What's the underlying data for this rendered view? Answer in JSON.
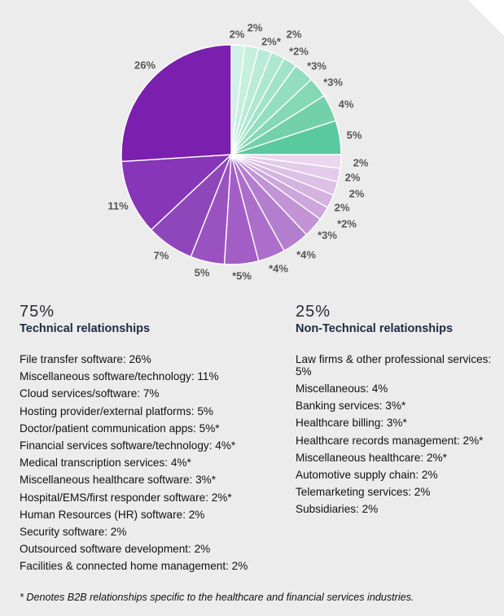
{
  "chart_data": {
    "type": "pie",
    "slice_labels": [
      "2%",
      "2%",
      "2%*",
      "2%",
      "*2%",
      "*3%",
      "*3%",
      "4%",
      "5%",
      "2%",
      "2%",
      "2%",
      "2%",
      "*2%",
      "*3%",
      "*4%",
      "*4%",
      "*5%",
      "5%",
      "7%",
      "11%",
      "26%"
    ],
    "slices": [
      {
        "value": 2,
        "label": "2%",
        "group": "non-technical",
        "color": "#d0f2e6"
      },
      {
        "value": 2,
        "label": "2%",
        "group": "non-technical",
        "color": "#c5efdf"
      },
      {
        "value": 2,
        "label": "2%*",
        "group": "non-technical",
        "color": "#b9ebd8"
      },
      {
        "value": 2,
        "label": "2%",
        "group": "non-technical",
        "color": "#ade7d0"
      },
      {
        "value": 2,
        "label": "*2%",
        "group": "non-technical",
        "color": "#a1e3c9"
      },
      {
        "value": 3,
        "label": "*3%",
        "group": "non-technical",
        "color": "#93dec0"
      },
      {
        "value": 3,
        "label": "*3%",
        "group": "non-technical",
        "color": "#84d8b6"
      },
      {
        "value": 4,
        "label": "4%",
        "group": "non-technical",
        "color": "#72d1ab"
      },
      {
        "value": 5,
        "label": "5%",
        "group": "non-technical",
        "color": "#5bc99f"
      },
      {
        "value": 2,
        "label": "2%",
        "group": "technical",
        "color": "#ead6ef"
      },
      {
        "value": 2,
        "label": "2%",
        "group": "technical",
        "color": "#e3cbea"
      },
      {
        "value": 2,
        "label": "2%",
        "group": "technical",
        "color": "#dcc0e6"
      },
      {
        "value": 2,
        "label": "2%",
        "group": "technical",
        "color": "#d4b3e1"
      },
      {
        "value": 2,
        "label": "*2%",
        "group": "technical",
        "color": "#cca6dc"
      },
      {
        "value": 3,
        "label": "*3%",
        "group": "technical",
        "color": "#c294d6"
      },
      {
        "value": 4,
        "label": "*4%",
        "group": "technical",
        "color": "#b47ecf"
      },
      {
        "value": 4,
        "label": "*4%",
        "group": "technical",
        "color": "#ad6ecb"
      },
      {
        "value": 5,
        "label": "*5%",
        "group": "technical",
        "color": "#a35ec5"
      },
      {
        "value": 5,
        "label": "5%",
        "group": "technical",
        "color": "#9a52c0"
      },
      {
        "value": 7,
        "label": "7%",
        "group": "technical",
        "color": "#9046bb"
      },
      {
        "value": 11,
        "label": "11%",
        "group": "technical",
        "color": "#8636b6"
      },
      {
        "value": 26,
        "label": "26%",
        "group": "technical",
        "color": "#7b1fae"
      }
    ]
  },
  "technical": {
    "percent": "75%",
    "title": "Technical relationships",
    "items": [
      "File transfer software: 26%",
      "Miscellaneous software/technology: 11%",
      "Cloud services/software: 7%",
      "Hosting provider/external platforms: 5%",
      "Doctor/patient communication apps: 5%*",
      "Financial services software/technology: 4%*",
      "Medical transcription services: 4%*",
      "Miscellaneous healthcare software: 3%*",
      "Hospital/EMS/first responder software: 2%*",
      "Human Resources (HR) software: 2%",
      "Security software: 2%",
      "Outsourced software development: 2%",
      "Facilities & connected home management: 2%"
    ]
  },
  "non_technical": {
    "percent": "25%",
    "title": "Non-Technical relationships",
    "items": [
      "Law firms & other professional services: 5%",
      "Miscellaneous: 4%",
      "Banking services: 3%*",
      "Healthcare billing: 3%*",
      "Healthcare records management: 2%*",
      "Miscellaneous healthcare: 2%*",
      "Automotive supply chain: 2%",
      "Telemarketing services: 2%",
      "Subsidiaries: 2%"
    ]
  },
  "footnote": "* Denotes B2B relationships specific to the healthcare and financial services industries."
}
